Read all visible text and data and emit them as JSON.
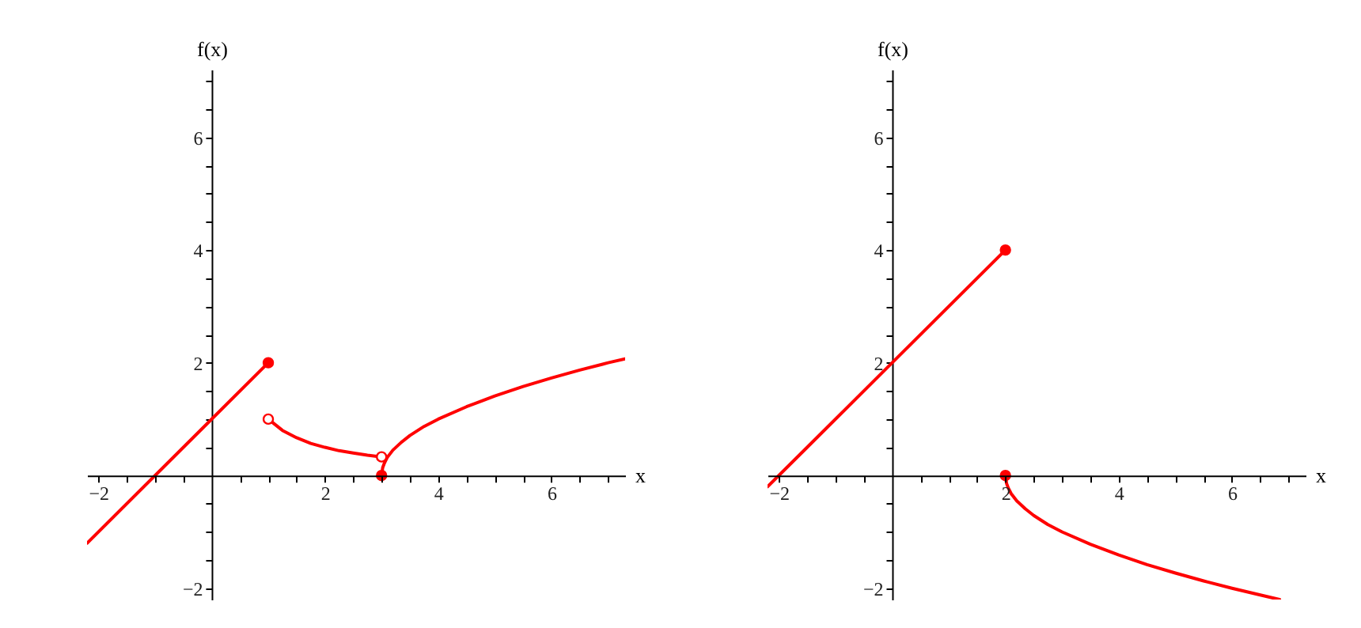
{
  "chart_data": [
    {
      "type": "line",
      "xlabel": "x",
      "ylabel": "f(x)",
      "grid": false,
      "xlim": [
        -2.2,
        7.3
      ],
      "ylim": [
        -2.2,
        7.2
      ],
      "xticks": [
        -2,
        {
          "value": -1.5,
          "label": null
        },
        {
          "value": -1,
          "label": null
        },
        {
          "value": -0.5,
          "label": null
        },
        {
          "value": 0.5,
          "label": null
        },
        {
          "value": 1,
          "label": null
        },
        {
          "value": 1.5,
          "label": null
        },
        2,
        {
          "value": 2.5,
          "label": null
        },
        {
          "value": 3,
          "label": null
        },
        {
          "value": 3.5,
          "label": null
        },
        4,
        {
          "value": 4.5,
          "label": null
        },
        {
          "value": 5,
          "label": null
        },
        {
          "value": 5.5,
          "label": null
        },
        6,
        {
          "value": 6.5,
          "label": null
        },
        {
          "value": 7,
          "label": null
        }
      ],
      "yticks": [
        -2,
        {
          "value": -1.5,
          "label": null
        },
        {
          "value": -1,
          "label": null
        },
        {
          "value": -0.5,
          "label": null
        },
        {
          "value": 0.5,
          "label": null
        },
        {
          "value": 1,
          "label": null
        },
        {
          "value": 1.5,
          "label": null
        },
        2,
        {
          "value": 2.5,
          "label": null
        },
        {
          "value": 3,
          "label": null
        },
        {
          "value": 3.5,
          "label": null
        },
        4,
        {
          "value": 4.5,
          "label": null
        },
        {
          "value": 5,
          "label": null
        },
        {
          "value": 5.5,
          "label": null
        },
        6,
        {
          "value": 6.5,
          "label": null
        },
        {
          "value": 7,
          "label": null
        }
      ],
      "series": [
        {
          "type": "line",
          "color": "#ff0000",
          "x": [
            -2.2,
            1
          ],
          "values": [
            -1.2,
            2
          ]
        },
        {
          "type": "line",
          "color": "#ff0000",
          "x": [
            1,
            1.25,
            1.5,
            1.75,
            2,
            2.25,
            2.5,
            2.75,
            3
          ],
          "values": [
            1,
            0.8,
            0.67,
            0.57,
            0.5,
            0.44,
            0.4,
            0.36,
            0.33
          ]
        },
        {
          "type": "line",
          "color": "#ff0000",
          "x": [
            3,
            3.02,
            3.05,
            3.1,
            3.2,
            3.35,
            3.5,
            3.75,
            4,
            4.5,
            5,
            5.5,
            6,
            6.5,
            7,
            7.3
          ],
          "values": [
            0,
            0.14,
            0.22,
            0.32,
            0.45,
            0.59,
            0.71,
            0.87,
            1,
            1.22,
            1.41,
            1.58,
            1.73,
            1.87,
            2,
            2.07
          ]
        },
        {
          "type": "scatter",
          "marker": "circle",
          "color": "#ff0000",
          "x": [
            1,
            3
          ],
          "values": [
            2,
            0
          ]
        },
        {
          "type": "scatter",
          "marker": "circle",
          "color": "#ffffff",
          "x": [
            1,
            3
          ],
          "values": [
            1,
            0.33
          ]
        }
      ]
    },
    {
      "type": "line",
      "xlabel": "x",
      "ylabel": "f(x)",
      "grid": false,
      "xlim": [
        -2.2,
        7.3
      ],
      "ylim": [
        -2.2,
        7.2
      ],
      "xticks": [
        -2,
        {
          "value": -1.5,
          "label": null
        },
        {
          "value": -1,
          "label": null
        },
        {
          "value": -0.5,
          "label": null
        },
        {
          "value": 0.5,
          "label": null
        },
        {
          "value": 1,
          "label": null
        },
        {
          "value": 1.5,
          "label": null
        },
        2,
        {
          "value": 2.5,
          "label": null
        },
        {
          "value": 3,
          "label": null
        },
        {
          "value": 3.5,
          "label": null
        },
        4,
        {
          "value": 4.5,
          "label": null
        },
        {
          "value": 5,
          "label": null
        },
        {
          "value": 5.5,
          "label": null
        },
        6,
        {
          "value": 6.5,
          "label": null
        },
        {
          "value": 7,
          "label": null
        }
      ],
      "yticks": [
        -2,
        {
          "value": -1.5,
          "label": null
        },
        {
          "value": -1,
          "label": null
        },
        {
          "value": -0.5,
          "label": null
        },
        {
          "value": 0.5,
          "label": null
        },
        {
          "value": 1,
          "label": null
        },
        {
          "value": 1.5,
          "label": null
        },
        2,
        {
          "value": 2.5,
          "label": null
        },
        {
          "value": 3,
          "label": null
        },
        {
          "value": 3.5,
          "label": null
        },
        4,
        {
          "value": 4.5,
          "label": null
        },
        {
          "value": 5,
          "label": null
        },
        {
          "value": 5.5,
          "label": null
        },
        6,
        {
          "value": 6.5,
          "label": null
        },
        {
          "value": 7,
          "label": null
        }
      ],
      "series": [
        {
          "type": "line",
          "color": "#ff0000",
          "x": [
            -2.2,
            2
          ],
          "values": [
            -0.2,
            4
          ]
        },
        {
          "type": "line",
          "color": "#ff0000",
          "x": [
            2,
            2.02,
            2.05,
            2.1,
            2.2,
            2.35,
            2.5,
            2.75,
            3,
            3.5,
            4,
            4.5,
            5,
            5.5,
            6,
            6.5,
            6.84
          ],
          "values": [
            0,
            -0.14,
            -0.22,
            -0.32,
            -0.45,
            -0.59,
            -0.71,
            -0.87,
            -1,
            -1.22,
            -1.41,
            -1.58,
            -1.73,
            -1.87,
            -2,
            -2.12,
            -2.2
          ]
        },
        {
          "type": "scatter",
          "marker": "circle",
          "color": "#ff0000",
          "x": [
            2,
            2
          ],
          "values": [
            4,
            0
          ]
        }
      ]
    }
  ]
}
